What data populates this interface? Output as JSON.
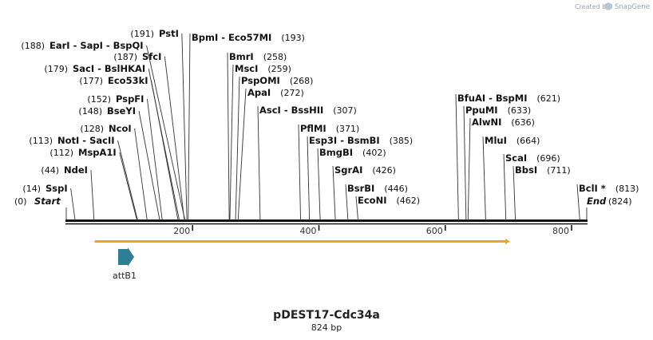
{
  "header": {
    "credit": "Created by",
    "brand": "SnapGene"
  },
  "map": {
    "title": "pDEST17-Cdc34a",
    "length_label": "824 bp",
    "length_bp": 824,
    "axis_ticks": [
      {
        "bp": 200,
        "label": "200"
      },
      {
        "bp": 400,
        "label": "400"
      },
      {
        "bp": 600,
        "label": "600"
      },
      {
        "bp": 800,
        "label": "800"
      }
    ],
    "start_label": {
      "text": "Start",
      "pos": "(0)"
    },
    "end_label": {
      "text": "End",
      "pos": "(824)"
    }
  },
  "sites_left": [
    {
      "names": "PstI",
      "pos": "(191)",
      "bp": 191
    },
    {
      "names": "EarI  -  SapI  -  BspQI",
      "pos": "(188)",
      "bp": 188
    },
    {
      "names": "SfcI",
      "pos": "(187)",
      "bp": 187
    },
    {
      "names": "SacI  -  BslHKAI",
      "pos": "(179)",
      "bp": 179
    },
    {
      "names": "Eco53kI",
      "pos": "(177)",
      "bp": 177
    },
    {
      "names": "PspFI",
      "pos": "(152)",
      "bp": 152
    },
    {
      "names": "BseYI",
      "pos": "(148)",
      "bp": 148
    },
    {
      "names": "NcoI",
      "pos": "(128)",
      "bp": 128
    },
    {
      "names": "NotI  -  SacII",
      "pos": "(113)",
      "bp": 113
    },
    {
      "names": "MspA1I",
      "pos": "(112)",
      "bp": 112
    },
    {
      "names": "NdeI",
      "pos": "(44)",
      "bp": 44
    },
    {
      "names": "SspI",
      "pos": "(14)",
      "bp": 14
    }
  ],
  "sites_right": [
    {
      "names": "BpmI  -  Eco57MI",
      "pos": "(193)",
      "bp": 193
    },
    {
      "names": "BmrI",
      "pos": "(258)",
      "bp": 258
    },
    {
      "names": "MscI",
      "pos": "(259)",
      "bp": 259
    },
    {
      "names": "PspOMI",
      "pos": "(268)",
      "bp": 268
    },
    {
      "names": "ApaI",
      "pos": "(272)",
      "bp": 272
    },
    {
      "names": "AscI  -  BssHII",
      "pos": "(307)",
      "bp": 307
    },
    {
      "names": "PflMI",
      "pos": "(371)",
      "bp": 371
    },
    {
      "names": "Esp3I  -  BsmBI",
      "pos": "(385)",
      "bp": 385
    },
    {
      "names": "BmgBI",
      "pos": "(402)",
      "bp": 402
    },
    {
      "names": "SgrAI",
      "pos": "(426)",
      "bp": 426
    },
    {
      "names": "BsrBI",
      "pos": "(446)",
      "bp": 446
    },
    {
      "names": "EcoNI",
      "pos": "(462)",
      "bp": 462
    },
    {
      "names": "BfuAI  -  BspMI",
      "pos": "(621)",
      "bp": 621
    },
    {
      "names": "PpuMI",
      "pos": "(633)",
      "bp": 633
    },
    {
      "names": "AlwNI",
      "pos": "(636)",
      "bp": 636
    },
    {
      "names": "MluI",
      "pos": "(664)",
      "bp": 664
    },
    {
      "names": "ScaI",
      "pos": "(696)",
      "bp": 696
    },
    {
      "names": "BbsI",
      "pos": "(711)",
      "bp": 711
    },
    {
      "names": "BclI *",
      "pos": "(813)",
      "bp": 813
    }
  ],
  "features": [
    {
      "name": "attB1",
      "start_bp": 85,
      "end_bp": 110,
      "color": "#2f7f94",
      "type": "arrow"
    }
  ],
  "orf": {
    "start_bp": 45,
    "end_bp": 705,
    "color": "#e8a623"
  },
  "colors": {
    "backbone": "#111111",
    "lines": "#333333"
  }
}
